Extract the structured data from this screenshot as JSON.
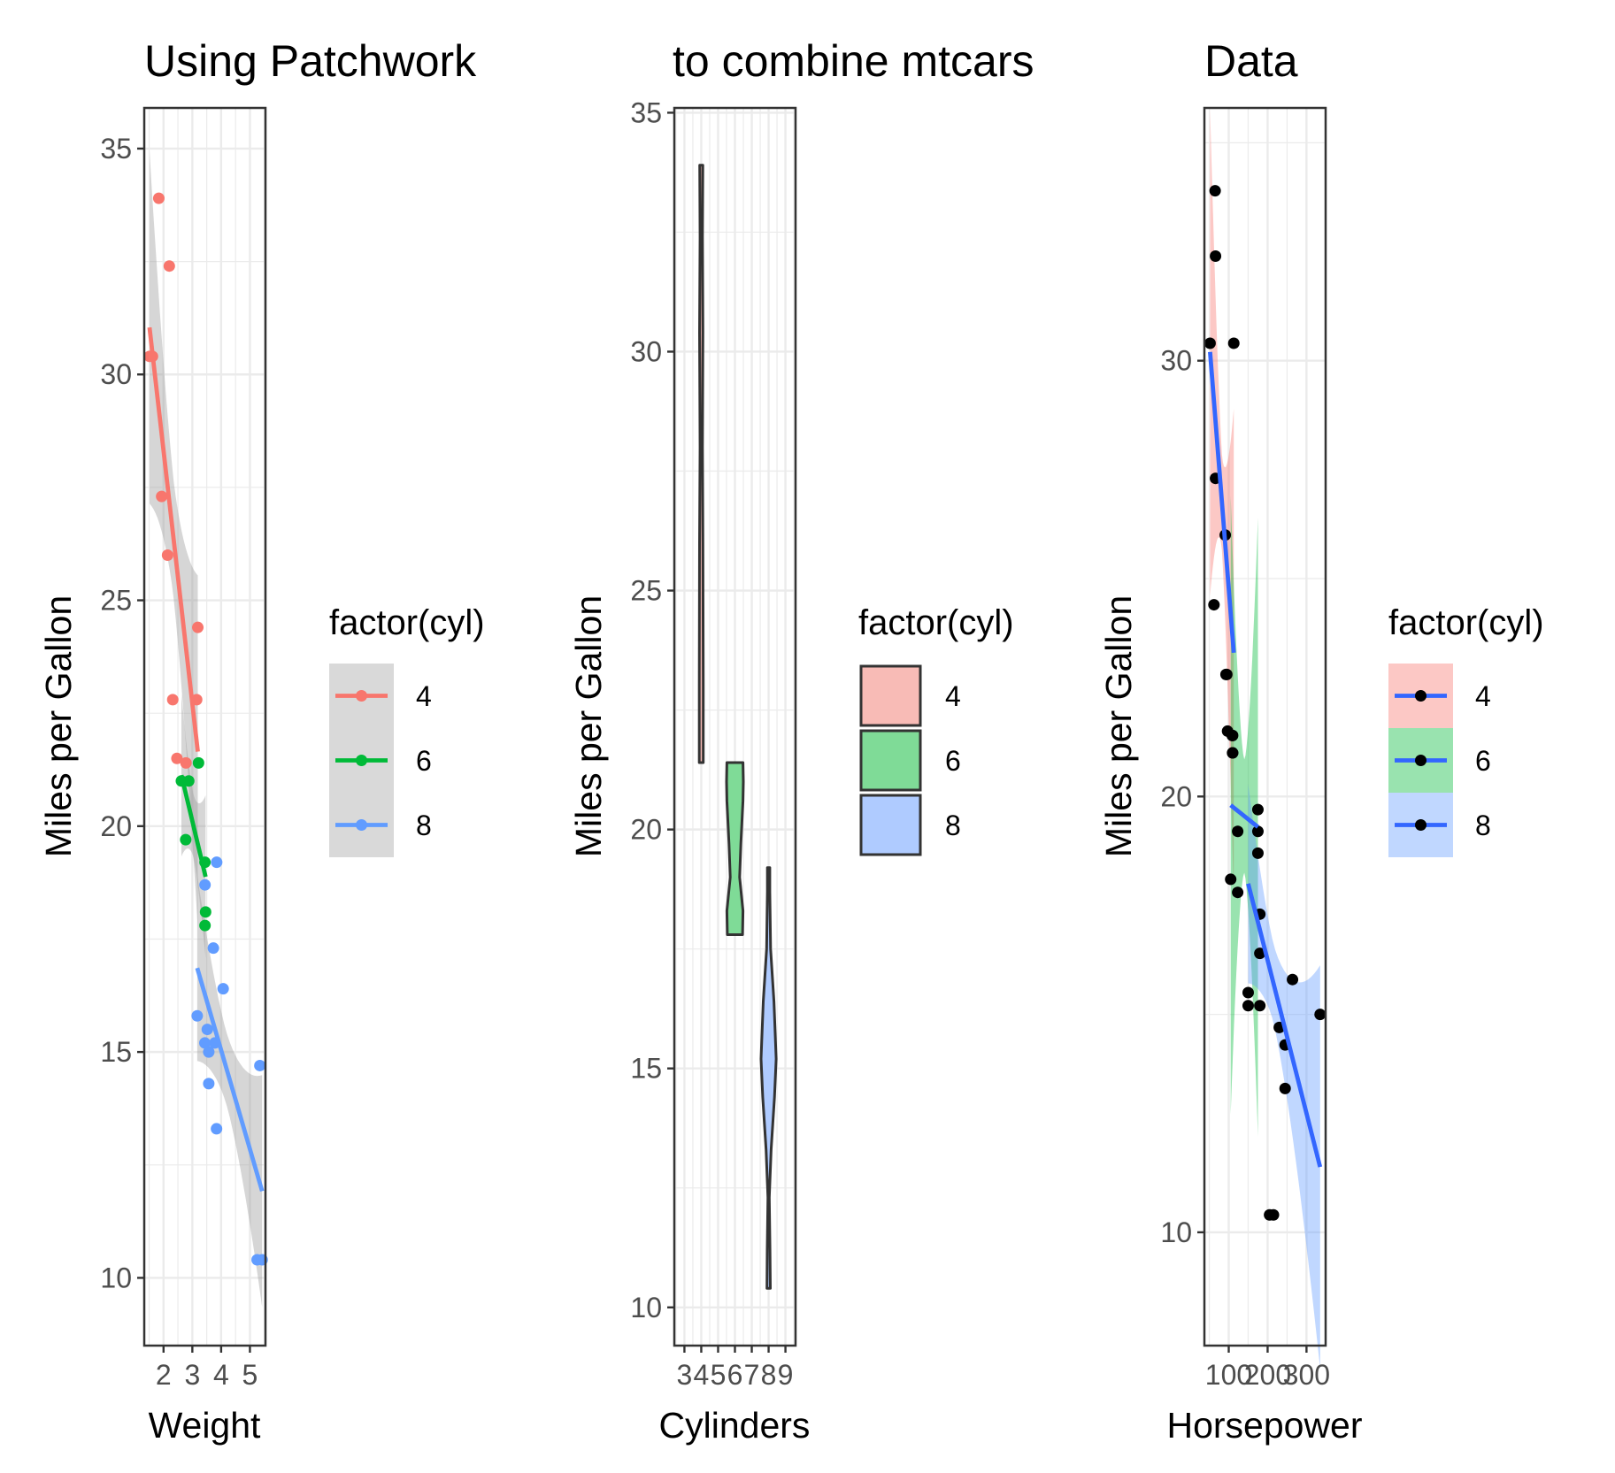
{
  "chart_data": [
    {
      "type": "scatter",
      "title": "Using Patchwork",
      "xlabel": "Weight",
      "ylabel": "Miles per Gallon",
      "xlim": [
        1.33,
        5.54
      ],
      "ylim": [
        8.5,
        35.9
      ],
      "x_ticks": [
        "2",
        "3",
        "4",
        "5"
      ],
      "y_ticks": [
        "10",
        "15",
        "20",
        "25",
        "30",
        "35"
      ],
      "legend": {
        "title": "factor(cyl)",
        "entries": [
          "4",
          "6",
          "8"
        ],
        "position": "right"
      },
      "series": [
        {
          "name": "4",
          "color": "#F8766D",
          "points": [
            [
              2.32,
              22.8
            ],
            [
              3.19,
              24.4
            ],
            [
              3.15,
              22.8
            ],
            [
              2.2,
              32.4
            ],
            [
              1.615,
              30.4
            ],
            [
              1.835,
              33.9
            ],
            [
              2.465,
              21.5
            ],
            [
              1.935,
              27.3
            ],
            [
              2.14,
              26.0
            ],
            [
              1.513,
              30.4
            ],
            [
              2.78,
              21.4
            ]
          ],
          "fit": {
            "x": [
              1.513,
              3.19
            ],
            "y": [
              31.04,
              21.65
            ]
          }
        },
        {
          "name": "6",
          "color": "#00BA38",
          "points": [
            [
              2.62,
              21.0
            ],
            [
              2.875,
              21.0
            ],
            [
              3.215,
              21.4
            ],
            [
              3.46,
              18.1
            ],
            [
              3.44,
              19.2
            ],
            [
              3.44,
              17.8
            ],
            [
              2.77,
              19.7
            ]
          ],
          "fit": {
            "x": [
              2.62,
              3.46
            ],
            "y": [
              21.13,
              18.88
            ]
          }
        },
        {
          "name": "8",
          "color": "#619CFF",
          "points": [
            [
              3.44,
              18.7
            ],
            [
              3.57,
              14.3
            ],
            [
              4.07,
              16.4
            ],
            [
              3.73,
              17.3
            ],
            [
              3.78,
              15.2
            ],
            [
              5.25,
              10.4
            ],
            [
              5.424,
              10.4
            ],
            [
              5.345,
              14.7
            ],
            [
              3.52,
              15.5
            ],
            [
              3.435,
              15.2
            ],
            [
              3.84,
              13.3
            ],
            [
              3.845,
              19.2
            ],
            [
              3.17,
              15.8
            ],
            [
              3.57,
              15.0
            ]
          ],
          "fit": {
            "x": [
              3.17,
              5.424
            ],
            "y": [
              16.86,
              11.92
            ]
          }
        }
      ]
    },
    {
      "type": "violin",
      "title": "to combine mtcars",
      "xlabel": "Cylinders",
      "ylabel": "Miles per Gallon",
      "xlim": [
        2.4,
        9.6
      ],
      "ylim": [
        9.2,
        35.1
      ],
      "x_ticks": [
        "3",
        "4",
        "5",
        "6",
        "7",
        "8",
        "9"
      ],
      "y_ticks": [
        "10",
        "15",
        "20",
        "25",
        "30",
        "35"
      ],
      "legend": {
        "title": "factor(cyl)",
        "entries": [
          "4",
          "6",
          "8"
        ],
        "position": "right"
      },
      "series": [
        {
          "name": "4",
          "x": 4,
          "min": 21.4,
          "max": 33.9,
          "color": "#F8BBB6"
        },
        {
          "name": "6",
          "x": 6,
          "min": 17.8,
          "max": 21.4,
          "color": "#7FDB97"
        },
        {
          "name": "8",
          "x": 8,
          "min": 10.4,
          "max": 19.2,
          "color": "#AFCBFF"
        }
      ]
    },
    {
      "type": "scatter",
      "title": "Data",
      "xlabel": "Horsepower",
      "ylabel": "Miles per Gallon",
      "xlim": [
        37.4,
        349.2
      ],
      "ylim": [
        7.4,
        35.8
      ],
      "x_ticks": [
        "100",
        "200",
        "300"
      ],
      "y_ticks": [
        "10",
        "20",
        "30"
      ],
      "legend": {
        "title": "factor(cyl)",
        "entries": [
          "4",
          "6",
          "8"
        ],
        "position": "right"
      },
      "points_color": "#000000",
      "fit_color": "#3366FF",
      "series": [
        {
          "name": "4",
          "ribbon_color": "#F8766D",
          "points": [
            [
              93,
              22.8
            ],
            [
              62,
              24.4
            ],
            [
              95,
              22.8
            ],
            [
              66,
              32.4
            ],
            [
              52,
              30.4
            ],
            [
              65,
              33.9
            ],
            [
              97,
              21.5
            ],
            [
              66,
              27.3
            ],
            [
              91,
              26.0
            ],
            [
              113,
              30.4
            ],
            [
              109,
              21.4
            ]
          ],
          "fit": {
            "x": [
              52,
              113
            ],
            "y": [
              30.2,
              23.3
            ]
          }
        },
        {
          "name": "6",
          "ribbon_color": "#00BA38",
          "points": [
            [
              110,
              21.0
            ],
            [
              110,
              21.0
            ],
            [
              110,
              21.4
            ],
            [
              105,
              18.1
            ],
            [
              123,
              19.2
            ],
            [
              123,
              17.8
            ],
            [
              175,
              19.7
            ]
          ],
          "fit": {
            "x": [
              105,
              175
            ],
            "y": [
              19.8,
              19.3
            ]
          }
        },
        {
          "name": "8",
          "ribbon_color": "#619CFF",
          "points": [
            [
              175,
              18.7
            ],
            [
              245,
              14.3
            ],
            [
              180,
              16.4
            ],
            [
              180,
              17.3
            ],
            [
              180,
              15.2
            ],
            [
              205,
              10.4
            ],
            [
              215,
              10.4
            ],
            [
              230,
              14.7
            ],
            [
              150,
              15.5
            ],
            [
              150,
              15.2
            ],
            [
              245,
              13.3
            ],
            [
              175,
              19.2
            ],
            [
              264,
              15.8
            ],
            [
              335,
              15.0
            ]
          ],
          "fit": {
            "x": [
              150,
              335
            ],
            "y": [
              18.0,
              11.5
            ]
          }
        }
      ]
    }
  ]
}
